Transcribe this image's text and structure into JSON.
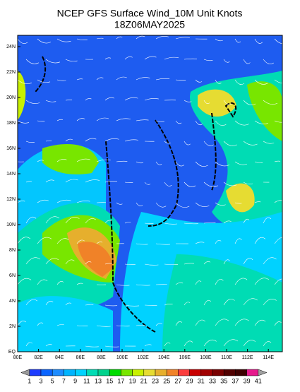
{
  "header": {
    "title": "NCEP GFS Surface Wind_10M Unit Knots",
    "subtitle": "18Z06MAY2025"
  },
  "lat_labels": [
    "24N",
    "22N",
    "20N",
    "18N",
    "16N",
    "14N",
    "12N",
    "10N",
    "8N",
    "6N",
    "4N",
    "2N",
    "EQ"
  ],
  "lon_labels": [
    "80E",
    "82E",
    "84E",
    "86E",
    "88E",
    "100E",
    "102E",
    "104E",
    "106E",
    "108E",
    "110E",
    "112E",
    "114E"
  ],
  "colorbar": {
    "labels": [
      "1",
      "3",
      "5",
      "7",
      "9",
      "11",
      "13",
      "15",
      "17",
      "19",
      "21",
      "23",
      "25",
      "27",
      "29",
      "31",
      "33",
      "35",
      "37",
      "39",
      "41"
    ],
    "colors": [
      "#9a9a9a",
      "#1e3cff",
      "#0a64ff",
      "#1e8cff",
      "#00b4ff",
      "#00d2ff",
      "#00dcb4",
      "#00d28c",
      "#00dc00",
      "#78e600",
      "#c8f000",
      "#e6dc32",
      "#e6af2d",
      "#f08228",
      "#fa3c3c",
      "#c80000",
      "#a00000",
      "#780000",
      "#500000",
      "#3c0000",
      "#e6198c",
      "#a0a0a0"
    ]
  }
}
